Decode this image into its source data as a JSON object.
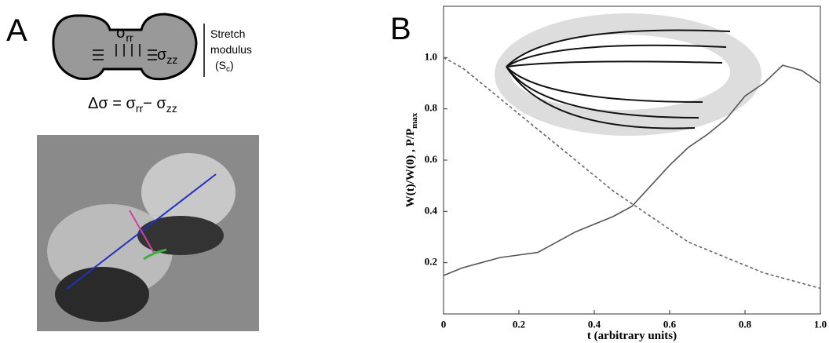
{
  "panel_a": {
    "label": "A",
    "sigma_rr": {
      "symbol": "σ",
      "sub": "rr"
    },
    "sigma_zz": {
      "symbol": "σ",
      "sub": "zz"
    },
    "stretch_lines": [
      "Stretch",
      "modulus",
      "(S",
      "c",
      ")"
    ],
    "equation": {
      "lhs": "Δσ = σ",
      "sub1": "rr",
      "mid": "− σ",
      "sub2": "zz"
    }
  },
  "panel_b": {
    "label": "B"
  },
  "chart_data": {
    "type": "line",
    "x_label": "t (arbitrary units)",
    "y_label": {
      "text": "W(t)/W(0) , P/P",
      "sub": "max"
    },
    "x": [
      0,
      0.05,
      0.1,
      0.15,
      0.2,
      0.25,
      0.3,
      0.35,
      0.4,
      0.45,
      0.5,
      0.55,
      0.6,
      0.65,
      0.7,
      0.75,
      0.8,
      0.85,
      0.9,
      0.95,
      1
    ],
    "series": [
      {
        "color": "#555555",
        "dash": false,
        "values": [
          0.15,
          0.18,
          0.2,
          0.22,
          0.23,
          0.24,
          0.28,
          0.32,
          0.35,
          0.38,
          0.42,
          0.5,
          0.58,
          0.65,
          0.7,
          0.76,
          0.85,
          0.9,
          0.97,
          0.95,
          0.9
        ]
      },
      {
        "color": "#666666",
        "dash": true,
        "values": [
          1.0,
          0.96,
          0.9,
          0.84,
          0.78,
          0.72,
          0.66,
          0.6,
          0.54,
          0.48,
          0.43,
          0.38,
          0.33,
          0.28,
          0.25,
          0.22,
          0.19,
          0.16,
          0.14,
          0.12,
          0.1
        ]
      }
    ],
    "xlim": [
      0,
      1
    ],
    "ylim": [
      0,
      1.2
    ],
    "xticks": [
      0,
      0.2,
      0.4,
      0.6,
      0.8,
      {
        "value": 1,
        "label": "1.0"
      }
    ],
    "yticks": [
      0.2,
      0.4,
      0.6,
      0.8,
      {
        "value": 1,
        "label": "1.0"
      }
    ]
  }
}
